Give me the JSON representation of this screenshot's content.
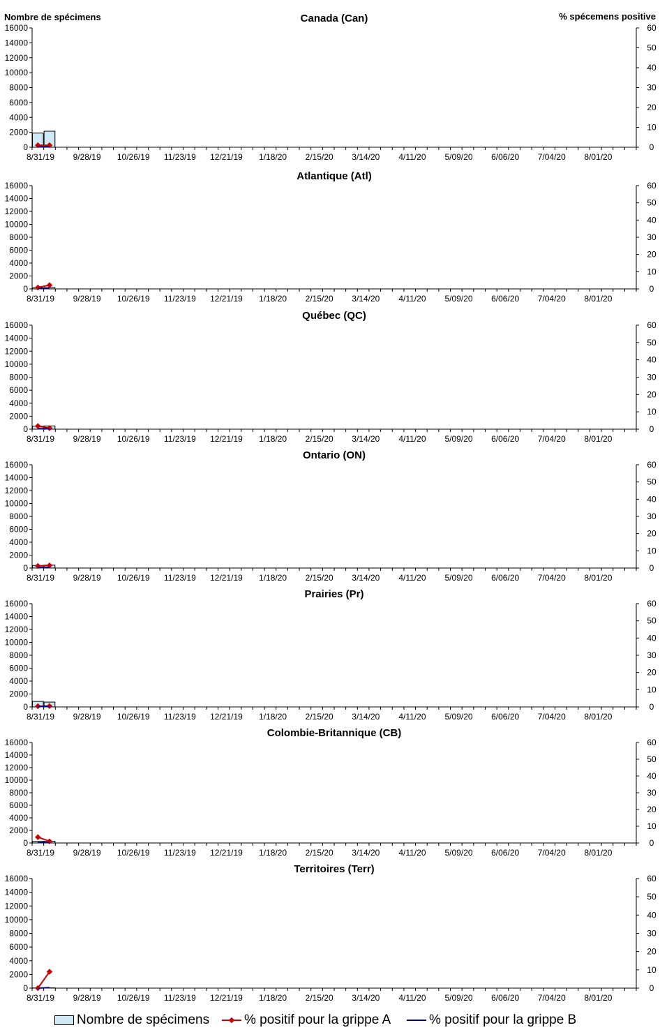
{
  "header": {
    "left_axis_label": "Nombre de spécimens",
    "right_axis_label": "% spécemens positive"
  },
  "legend": {
    "specimens": "Nombre de spécimens",
    "flu_a": "% positif pour la grippe A",
    "flu_b": "% positif pour la grippe B"
  },
  "colors": {
    "bar_fill": "#cfe9f7",
    "bar_stroke": "#000000",
    "flu_a": "#cc0000",
    "flu_b": "#00008b"
  },
  "chart_data": [
    {
      "type": "bar+line",
      "title": "Canada (Can)",
      "ylim_left": [
        0,
        16000
      ],
      "ylim_right": [
        0,
        60
      ],
      "yticks_left": [
        "0",
        "2000",
        "4000",
        "6000",
        "8000",
        "10000",
        "12000",
        "14000",
        "16000"
      ],
      "yticks_right": [
        "0",
        "10",
        "20",
        "30",
        "40",
        "50",
        "60"
      ],
      "x_tick_labels": [
        "8/31/19",
        "9/28/19",
        "10/26/19",
        "11/23/19",
        "12/21/19",
        "1/18/20",
        "2/15/20",
        "3/14/20",
        "4/11/20",
        "5/09/20",
        "6/06/20",
        "7/04/20",
        "8/01/20"
      ],
      "weeks": 52,
      "series": [
        {
          "name": "Nombre de spécimens",
          "kind": "bar",
          "values": [
            1900,
            2150
          ]
        },
        {
          "name": "% positif pour la grippe A",
          "kind": "line",
          "values": [
            1.0,
            1.0
          ]
        },
        {
          "name": "% positif pour la grippe B",
          "kind": "line",
          "values": [
            0.3,
            0.4
          ]
        }
      ]
    },
    {
      "type": "bar+line",
      "title": "Atlantique (Atl)",
      "ylim_left": [
        0,
        16000
      ],
      "ylim_right": [
        0,
        60
      ],
      "yticks_left": [
        "0",
        "2000",
        "4000",
        "6000",
        "8000",
        "10000",
        "12000",
        "14000",
        "16000"
      ],
      "yticks_right": [
        "0",
        "10",
        "20",
        "30",
        "40",
        "50",
        "60"
      ],
      "x_tick_labels": [
        "8/31/19",
        "9/28/19",
        "10/26/19",
        "11/23/19",
        "12/21/19",
        "1/18/20",
        "2/15/20",
        "3/14/20",
        "4/11/20",
        "5/09/20",
        "6/06/20",
        "7/04/20",
        "8/01/20"
      ],
      "weeks": 52,
      "series": [
        {
          "name": "Nombre de spécimens",
          "kind": "bar",
          "values": [
            180,
            200
          ]
        },
        {
          "name": "% positif pour la grippe A",
          "kind": "line",
          "values": [
            0.8,
            2.2
          ]
        },
        {
          "name": "% positif pour la grippe B",
          "kind": "line",
          "values": [
            0.2,
            0.3
          ]
        }
      ]
    },
    {
      "type": "bar+line",
      "title": "Québec (QC)",
      "ylim_left": [
        0,
        16000
      ],
      "ylim_right": [
        0,
        60
      ],
      "yticks_left": [
        "0",
        "2000",
        "4000",
        "6000",
        "8000",
        "10000",
        "12000",
        "14000",
        "16000"
      ],
      "yticks_right": [
        "0",
        "10",
        "20",
        "30",
        "40",
        "50",
        "60"
      ],
      "x_tick_labels": [
        "8/31/19",
        "9/28/19",
        "10/26/19",
        "11/23/19",
        "12/21/19",
        "1/18/20",
        "2/15/20",
        "3/14/20",
        "4/11/20",
        "5/09/20",
        "6/06/20",
        "7/04/20",
        "8/01/20"
      ],
      "weeks": 52,
      "series": [
        {
          "name": "Nombre de spécimens",
          "kind": "bar",
          "values": [
            450,
            500
          ]
        },
        {
          "name": "% positif pour la grippe A",
          "kind": "line",
          "values": [
            1.8,
            0.6
          ]
        },
        {
          "name": "% positif pour la grippe B",
          "kind": "line",
          "values": [
            0.3,
            0.2
          ]
        }
      ]
    },
    {
      "type": "bar+line",
      "title": "Ontario (ON)",
      "ylim_left": [
        0,
        16000
      ],
      "ylim_right": [
        0,
        60
      ],
      "yticks_left": [
        "0",
        "2000",
        "4000",
        "6000",
        "8000",
        "10000",
        "12000",
        "14000",
        "16000"
      ],
      "yticks_right": [
        "0",
        "10",
        "20",
        "30",
        "40",
        "50",
        "60"
      ],
      "x_tick_labels": [
        "8/31/19",
        "9/28/19",
        "10/26/19",
        "11/23/19",
        "12/21/19",
        "1/18/20",
        "2/15/20",
        "3/14/20",
        "4/11/20",
        "5/09/20",
        "6/06/20",
        "7/04/20",
        "8/01/20"
      ],
      "weeks": 52,
      "series": [
        {
          "name": "Nombre de spécimens",
          "kind": "bar",
          "values": [
            400,
            450
          ]
        },
        {
          "name": "% positif pour la grippe A",
          "kind": "line",
          "values": [
            1.2,
            1.5
          ]
        },
        {
          "name": "% positif pour la grippe B",
          "kind": "line",
          "values": [
            0.3,
            0.3
          ]
        }
      ]
    },
    {
      "type": "bar+line",
      "title": "Prairies (Pr)",
      "ylim_left": [
        0,
        16000
      ],
      "ylim_right": [
        0,
        60
      ],
      "yticks_left": [
        "0",
        "2000",
        "4000",
        "6000",
        "8000",
        "10000",
        "12000",
        "14000",
        "16000"
      ],
      "yticks_right": [
        "0",
        "10",
        "20",
        "30",
        "40",
        "50",
        "60"
      ],
      "x_tick_labels": [
        "8/31/19",
        "9/28/19",
        "10/26/19",
        "11/23/19",
        "12/21/19",
        "1/18/20",
        "2/15/20",
        "3/14/20",
        "4/11/20",
        "5/09/20",
        "6/06/20",
        "7/04/20",
        "8/01/20"
      ],
      "weeks": 52,
      "series": [
        {
          "name": "Nombre de spécimens",
          "kind": "bar",
          "values": [
            850,
            750
          ]
        },
        {
          "name": "% positif pour la grippe A",
          "kind": "line",
          "values": [
            0.4,
            0.5
          ]
        },
        {
          "name": "% positif pour la grippe B",
          "kind": "line",
          "values": [
            0.2,
            0.2
          ]
        }
      ]
    },
    {
      "type": "bar+line",
      "title": "Colombie-Britannique (CB)",
      "ylim_left": [
        0,
        16000
      ],
      "ylim_right": [
        0,
        60
      ],
      "yticks_left": [
        "0",
        "2000",
        "4000",
        "6000",
        "8000",
        "10000",
        "12000",
        "14000",
        "16000"
      ],
      "yticks_right": [
        "0",
        "10",
        "20",
        "30",
        "40",
        "50",
        "60"
      ],
      "x_tick_labels": [
        "8/31/19",
        "9/28/19",
        "10/26/19",
        "11/23/19",
        "12/21/19",
        "1/18/20",
        "2/15/20",
        "3/14/20",
        "4/11/20",
        "5/09/20",
        "6/06/20",
        "7/04/20",
        "8/01/20"
      ],
      "weeks": 52,
      "series": [
        {
          "name": "Nombre de spécimens",
          "kind": "bar",
          "values": [
            250,
            280
          ]
        },
        {
          "name": "% positif pour la grippe A",
          "kind": "line",
          "values": [
            3.5,
            1.0
          ]
        },
        {
          "name": "% positif pour la grippe B",
          "kind": "line",
          "values": [
            0.2,
            0.2
          ]
        }
      ]
    },
    {
      "type": "bar+line",
      "title": "Territoires (Terr)",
      "ylim_left": [
        0,
        16000
      ],
      "ylim_right": [
        0,
        60
      ],
      "yticks_left": [
        "0",
        "2000",
        "4000",
        "6000",
        "8000",
        "10000",
        "12000",
        "14000",
        "16000"
      ],
      "yticks_right": [
        "0",
        "10",
        "20",
        "30",
        "40",
        "50",
        "60"
      ],
      "x_tick_labels": [
        "8/31/19",
        "9/28/19",
        "10/26/19",
        "11/23/19",
        "12/21/19",
        "1/18/20",
        "2/15/20",
        "3/14/20",
        "4/11/20",
        "5/09/20",
        "6/06/20",
        "7/04/20",
        "8/01/20"
      ],
      "weeks": 52,
      "series": [
        {
          "name": "Nombre de spécimens",
          "kind": "bar",
          "values": [
            30,
            40
          ]
        },
        {
          "name": "% positif pour la grippe A",
          "kind": "line",
          "values": [
            0,
            9
          ]
        },
        {
          "name": "% positif pour la grippe B",
          "kind": "line",
          "values": [
            0,
            0.3
          ]
        }
      ]
    }
  ]
}
